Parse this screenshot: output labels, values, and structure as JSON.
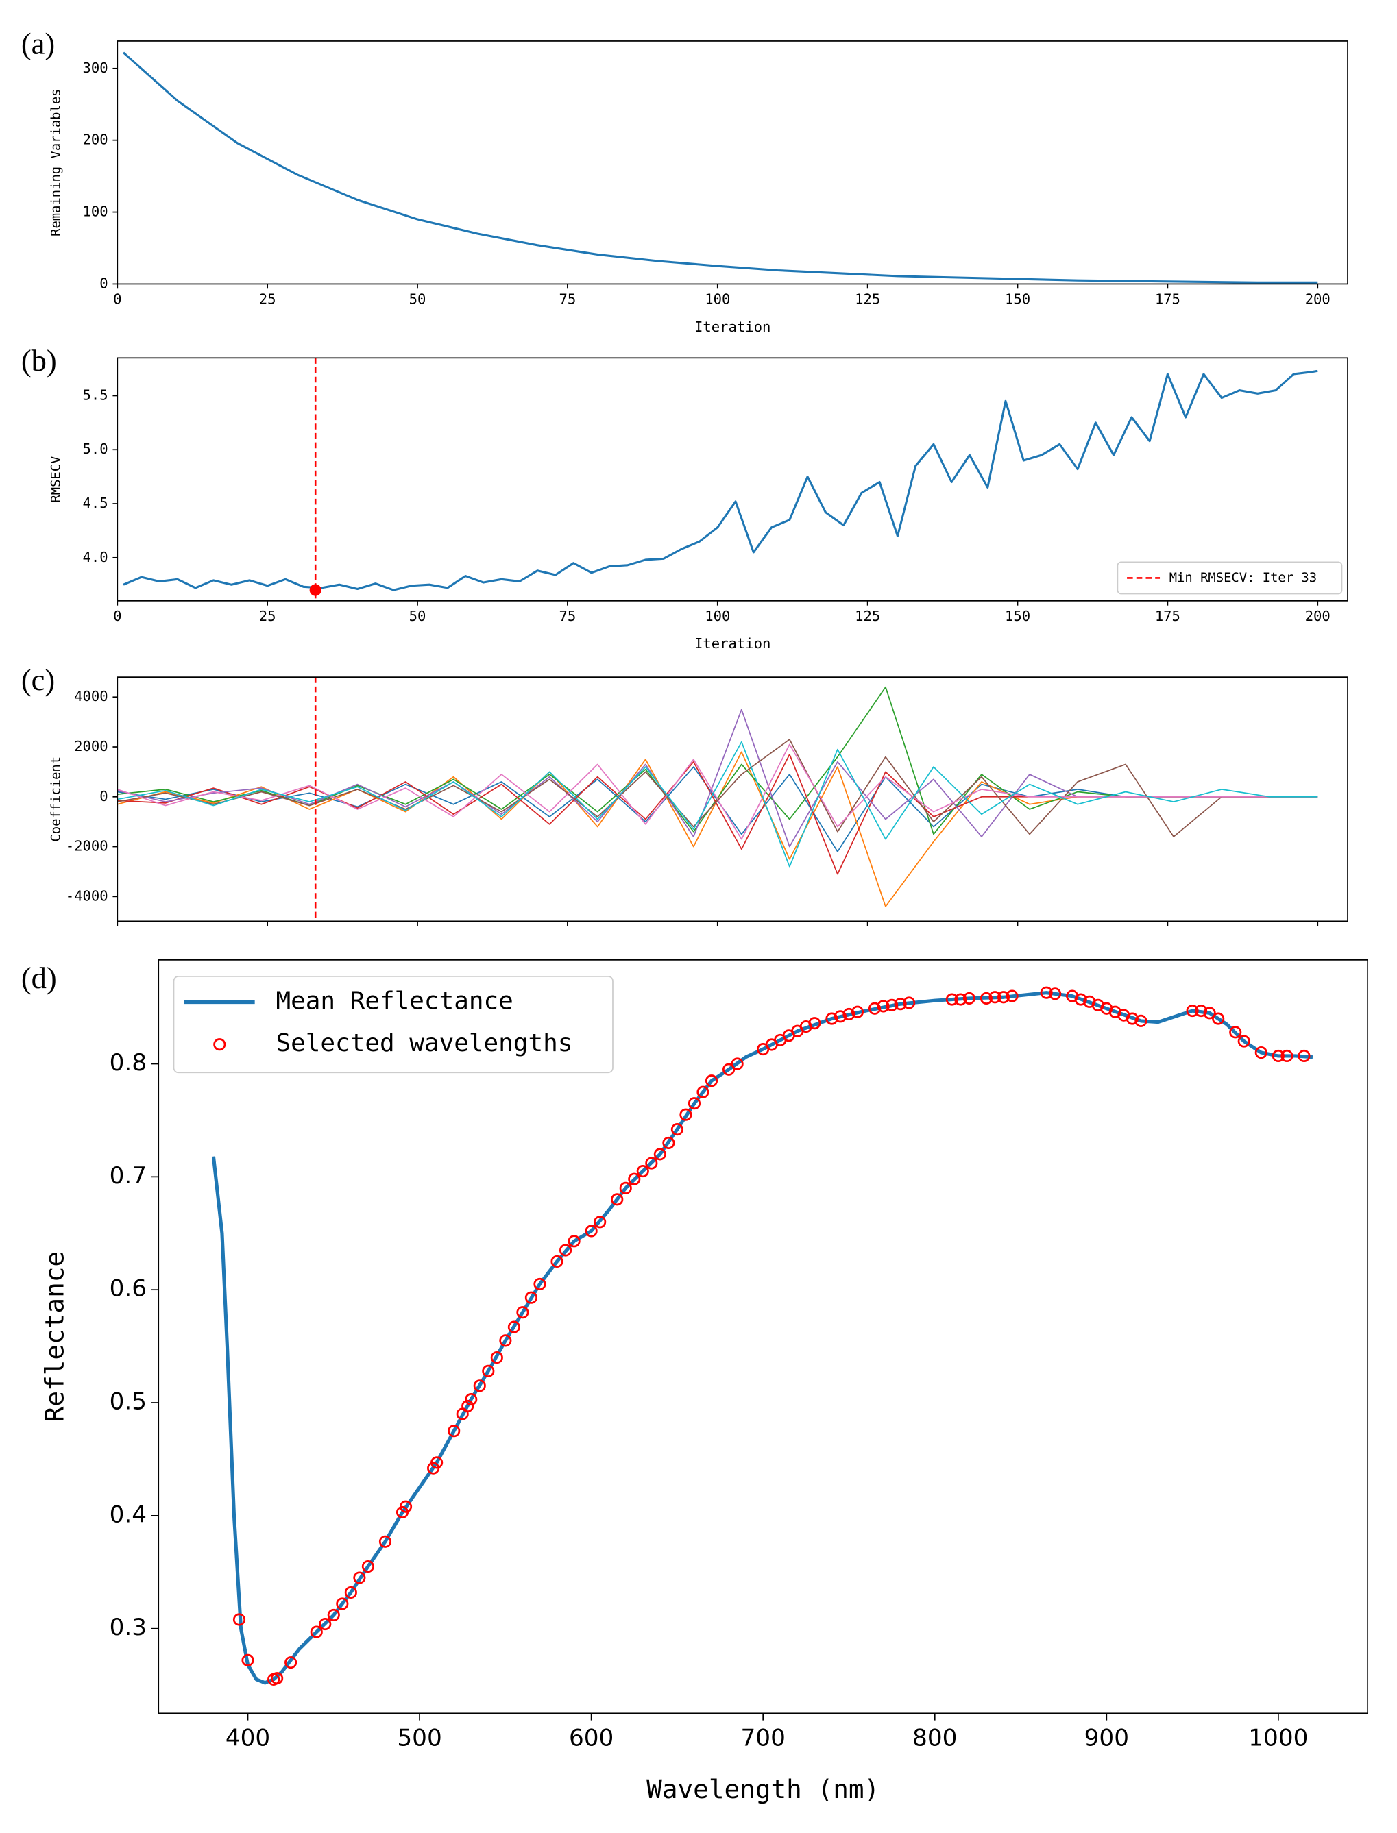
{
  "chart_data": [
    {
      "type": "line",
      "panel_label": "(a)",
      "xlabel": "Iteration",
      "ylabel": "Remaining Variables",
      "x": [
        1,
        10,
        20,
        30,
        40,
        50,
        60,
        70,
        80,
        90,
        100,
        110,
        120,
        130,
        140,
        150,
        160,
        170,
        180,
        190,
        200
      ],
      "series": [
        {
          "color": "#1f77b4",
          "values": [
            322,
            255,
            196,
            152,
            117,
            90,
            70,
            54,
            41,
            32,
            25,
            19,
            15,
            11,
            9,
            7,
            5,
            4,
            3,
            2,
            2
          ]
        }
      ],
      "xlim": [
        0,
        205
      ],
      "ylim": [
        0,
        338
      ],
      "xticks": [
        0,
        25,
        50,
        75,
        100,
        125,
        150,
        175,
        200
      ],
      "yticks": [
        0,
        100,
        200,
        300
      ]
    },
    {
      "type": "line",
      "panel_label": "(b)",
      "xlabel": "Iteration",
      "ylabel": "RMSECV",
      "x": [
        1,
        4,
        7,
        10,
        13,
        16,
        19,
        22,
        25,
        28,
        31,
        34,
        37,
        40,
        43,
        46,
        49,
        52,
        55,
        58,
        61,
        64,
        67,
        70,
        73,
        76,
        79,
        82,
        85,
        88,
        91,
        94,
        97,
        100,
        103,
        106,
        109,
        112,
        115,
        118,
        121,
        124,
        127,
        130,
        133,
        136,
        139,
        142,
        145,
        148,
        151,
        154,
        157,
        160,
        163,
        166,
        169,
        172,
        175,
        178,
        181,
        184,
        187,
        190,
        193,
        196,
        199,
        200
      ],
      "series": [
        {
          "color": "#1f77b4",
          "values": [
            3.75,
            3.82,
            3.78,
            3.8,
            3.72,
            3.79,
            3.75,
            3.79,
            3.74,
            3.8,
            3.73,
            3.72,
            3.75,
            3.71,
            3.76,
            3.7,
            3.74,
            3.75,
            3.72,
            3.83,
            3.77,
            3.8,
            3.78,
            3.88,
            3.84,
            3.95,
            3.86,
            3.92,
            3.93,
            3.98,
            3.99,
            4.08,
            4.15,
            4.28,
            4.52,
            4.05,
            4.28,
            4.35,
            4.75,
            4.42,
            4.3,
            4.6,
            4.7,
            4.2,
            4.85,
            5.05,
            4.7,
            4.95,
            4.65,
            5.45,
            4.9,
            4.95,
            5.05,
            4.82,
            5.25,
            4.95,
            5.3,
            5.08,
            5.7,
            5.3,
            5.7,
            5.48,
            5.55,
            5.52,
            5.55,
            5.7,
            5.72,
            5.73
          ]
        }
      ],
      "vline": {
        "name": "Min RMSECV: Iter 33",
        "x": 33,
        "color": "#ff0000"
      },
      "highlight": {
        "x": 33,
        "y": 3.7,
        "color": "#ff0000"
      },
      "legend": "lower right",
      "xlim": [
        0,
        205
      ],
      "ylim": [
        3.6,
        5.85
      ],
      "xticks": [
        0,
        25,
        50,
        75,
        100,
        125,
        150,
        175,
        200
      ],
      "yticks": [
        {
          "value": 4,
          "label": "4.0"
        },
        4.5,
        {
          "value": 5,
          "label": "5.0"
        },
        5.5
      ]
    },
    {
      "type": "line",
      "panel_label": "(c)",
      "ylabel": "Coefficient",
      "x": [
        0,
        8,
        16,
        24,
        32,
        40,
        48,
        56,
        64,
        72,
        80,
        88,
        96,
        104,
        112,
        120,
        128,
        136,
        144,
        152,
        160,
        168,
        176,
        184,
        192,
        200
      ],
      "series": [
        {
          "color": "#1f77b4",
          "values": [
            200,
            -100,
            300,
            -200,
            150,
            -400,
            500,
            -300,
            600,
            -800,
            700,
            -1000,
            1200,
            -1500,
            900,
            -2200,
            800,
            -1200,
            500,
            0,
            300,
            0,
            0,
            0,
            0,
            0
          ]
        },
        {
          "color": "#ff7f0e",
          "values": [
            -300,
            200,
            -250,
            400,
            -500,
            300,
            -600,
            800,
            -900,
            1000,
            -1200,
            1500,
            -2000,
            1800,
            -2500,
            1200,
            -4400,
            -1800,
            600,
            -300,
            0,
            0,
            0,
            0,
            0,
            0
          ]
        },
        {
          "color": "#2ca02c",
          "values": [
            100,
            300,
            -200,
            250,
            -350,
            450,
            -300,
            700,
            -500,
            900,
            -600,
            1100,
            -1400,
            1300,
            -900,
            1600,
            4400,
            -1500,
            900,
            -500,
            200,
            0,
            0,
            0,
            0,
            0
          ]
        },
        {
          "color": "#d62728",
          "values": [
            -150,
            -250,
            350,
            -300,
            400,
            -450,
            600,
            -700,
            500,
            -1100,
            800,
            -900,
            1400,
            -2100,
            1700,
            -3100,
            1000,
            -800,
            0,
            0,
            0,
            0,
            0,
            0,
            0,
            0
          ]
        },
        {
          "color": "#9467bd",
          "values": [
            250,
            -200,
            150,
            350,
            -300,
            500,
            -400,
            600,
            -700,
            800,
            -1000,
            1300,
            -1600,
            3500,
            -2000,
            1400,
            -900,
            700,
            -1600,
            900,
            0,
            0,
            0,
            0,
            0,
            0
          ]
        },
        {
          "color": "#8c564b",
          "values": [
            -200,
            150,
            -300,
            200,
            -350,
            300,
            -500,
            450,
            -600,
            700,
            -800,
            1000,
            -1200,
            900,
            2300,
            -1400,
            1600,
            -1000,
            800,
            -1500,
            600,
            1300,
            -1600,
            0,
            0,
            0
          ]
        },
        {
          "color": "#e377c2",
          "values": [
            300,
            -350,
            200,
            -150,
            450,
            -500,
            350,
            -800,
            900,
            -600,
            1300,
            -1100,
            1500,
            -1700,
            2100,
            -1200,
            800,
            -600,
            300,
            0,
            0,
            0,
            0,
            0,
            0,
            0
          ]
        },
        {
          "color": "#17becf",
          "values": [
            -100,
            250,
            -350,
            300,
            -200,
            400,
            -550,
            600,
            -800,
            1000,
            -900,
            1200,
            -1300,
            2200,
            -2800,
            1900,
            -1700,
            1200,
            -700,
            500,
            -300,
            200,
            -200,
            300,
            0,
            0
          ]
        }
      ],
      "vline": {
        "x": 33,
        "color": "#ff0000"
      },
      "xtick_labels": false,
      "xlim": [
        0,
        205
      ],
      "ylim": [
        -4990,
        4800
      ],
      "xticks": [
        0,
        25,
        50,
        75,
        100,
        125,
        150,
        175,
        200
      ],
      "yticks": [
        -4000,
        -2000,
        0,
        2000,
        4000
      ]
    },
    {
      "type": "line",
      "panel_label": "(d)",
      "xlabel": "Wavelength (nm)",
      "ylabel": "Reflectance",
      "series": [
        {
          "name": "Mean Reflectance",
          "color": "#1f77b4",
          "x": [
            380,
            385,
            388,
            392,
            396,
            400,
            405,
            410,
            415,
            420,
            430,
            440,
            450,
            460,
            470,
            480,
            490,
            500,
            510,
            520,
            530,
            540,
            550,
            560,
            570,
            580,
            590,
            600,
            610,
            620,
            630,
            640,
            650,
            660,
            670,
            680,
            690,
            700,
            720,
            740,
            760,
            780,
            800,
            820,
            840,
            865,
            880,
            900,
            920,
            930,
            940,
            950,
            960,
            970,
            980,
            990,
            1000,
            1010,
            1020
          ],
          "values": [
            0.718,
            0.65,
            0.55,
            0.4,
            0.3,
            0.268,
            0.255,
            0.252,
            0.255,
            0.262,
            0.282,
            0.297,
            0.312,
            0.332,
            0.355,
            0.377,
            0.403,
            0.425,
            0.447,
            0.475,
            0.503,
            0.528,
            0.555,
            0.58,
            0.605,
            0.625,
            0.643,
            0.652,
            0.67,
            0.69,
            0.705,
            0.72,
            0.742,
            0.765,
            0.785,
            0.795,
            0.806,
            0.813,
            0.829,
            0.84,
            0.847,
            0.853,
            0.856,
            0.858,
            0.859,
            0.863,
            0.86,
            0.849,
            0.838,
            0.837,
            0.842,
            0.847,
            0.845,
            0.835,
            0.82,
            0.81,
            0.807,
            0.807,
            0.806
          ]
        }
      ],
      "scatter": {
        "name": "Selected wavelengths",
        "color": "#ff0000",
        "x": [
          395,
          400,
          415,
          417,
          425,
          440,
          445,
          450,
          455,
          460,
          465,
          470,
          480,
          490,
          492,
          508,
          510,
          520,
          525,
          528,
          530,
          535,
          540,
          545,
          550,
          555,
          560,
          565,
          570,
          580,
          585,
          590,
          600,
          605,
          615,
          620,
          625,
          630,
          635,
          640,
          645,
          650,
          655,
          660,
          665,
          670,
          680,
          685,
          700,
          705,
          710,
          715,
          720,
          725,
          730,
          740,
          745,
          750,
          755,
          765,
          770,
          775,
          780,
          785,
          810,
          815,
          820,
          830,
          835,
          840,
          845,
          865,
          870,
          880,
          885,
          890,
          895,
          900,
          905,
          910,
          915,
          920,
          950,
          955,
          960,
          965,
          975,
          980,
          990,
          1000,
          1005,
          1015
        ],
        "values": [
          0.308,
          0.272,
          0.255,
          0.256,
          0.27,
          0.297,
          0.304,
          0.312,
          0.322,
          0.332,
          0.345,
          0.355,
          0.377,
          0.403,
          0.408,
          0.442,
          0.447,
          0.475,
          0.49,
          0.497,
          0.503,
          0.515,
          0.528,
          0.54,
          0.555,
          0.567,
          0.58,
          0.593,
          0.605,
          0.625,
          0.635,
          0.643,
          0.652,
          0.66,
          0.68,
          0.69,
          0.698,
          0.705,
          0.712,
          0.72,
          0.73,
          0.742,
          0.755,
          0.765,
          0.775,
          0.785,
          0.795,
          0.8,
          0.813,
          0.817,
          0.821,
          0.825,
          0.829,
          0.833,
          0.836,
          0.84,
          0.842,
          0.844,
          0.846,
          0.849,
          0.851,
          0.852,
          0.853,
          0.854,
          0.857,
          0.857,
          0.858,
          0.858,
          0.859,
          0.859,
          0.86,
          0.863,
          0.862,
          0.86,
          0.857,
          0.855,
          0.852,
          0.849,
          0.846,
          0.843,
          0.84,
          0.838,
          0.847,
          0.847,
          0.845,
          0.84,
          0.828,
          0.82,
          0.81,
          0.807,
          0.807,
          0.807
        ]
      },
      "legend": "upper left",
      "xlim": [
        348,
        1052
      ],
      "ylim": [
        0.225,
        0.892
      ],
      "xticks": [
        400,
        500,
        600,
        700,
        800,
        900,
        1000
      ],
      "yticks": [
        0.3,
        0.4,
        0.5,
        0.6,
        0.7,
        0.8
      ]
    }
  ]
}
